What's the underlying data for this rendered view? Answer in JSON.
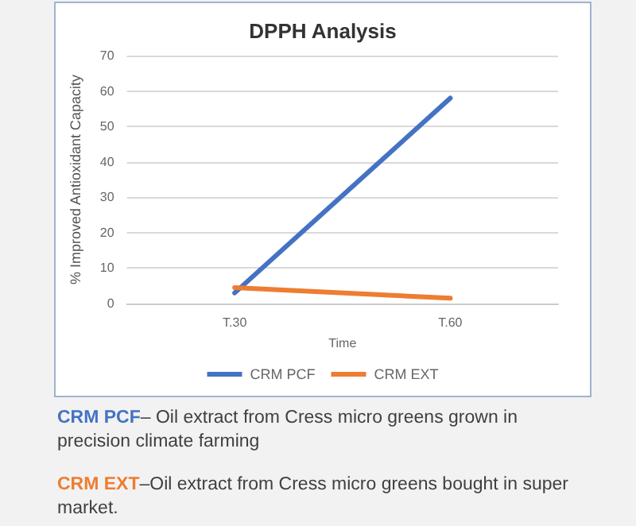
{
  "chart_data": {
    "type": "line",
    "title": "DPPH Analysis",
    "xlabel": "Time",
    "ylabel": "% Improved Antioxidant Capacity",
    "categories": [
      "T.30",
      "T.60"
    ],
    "series": [
      {
        "name": "CRM PCF",
        "color": "#4472c4",
        "values": [
          3,
          58
        ]
      },
      {
        "name": "CRM EXT",
        "color": "#ed7d31",
        "values": [
          4.5,
          1.5
        ]
      }
    ],
    "ylim": [
      0,
      70
    ],
    "yticks": [
      0,
      10,
      20,
      30,
      40,
      50,
      60,
      70
    ],
    "grid": "y",
    "legend": "bottom",
    "marker": "none",
    "annotations": [
      "CRM PCF– Oil extract from Cress micro greens grown in precision climate farming",
      "CRM EXT–Oil extract from Cress micro greens bought in super market."
    ]
  }
}
